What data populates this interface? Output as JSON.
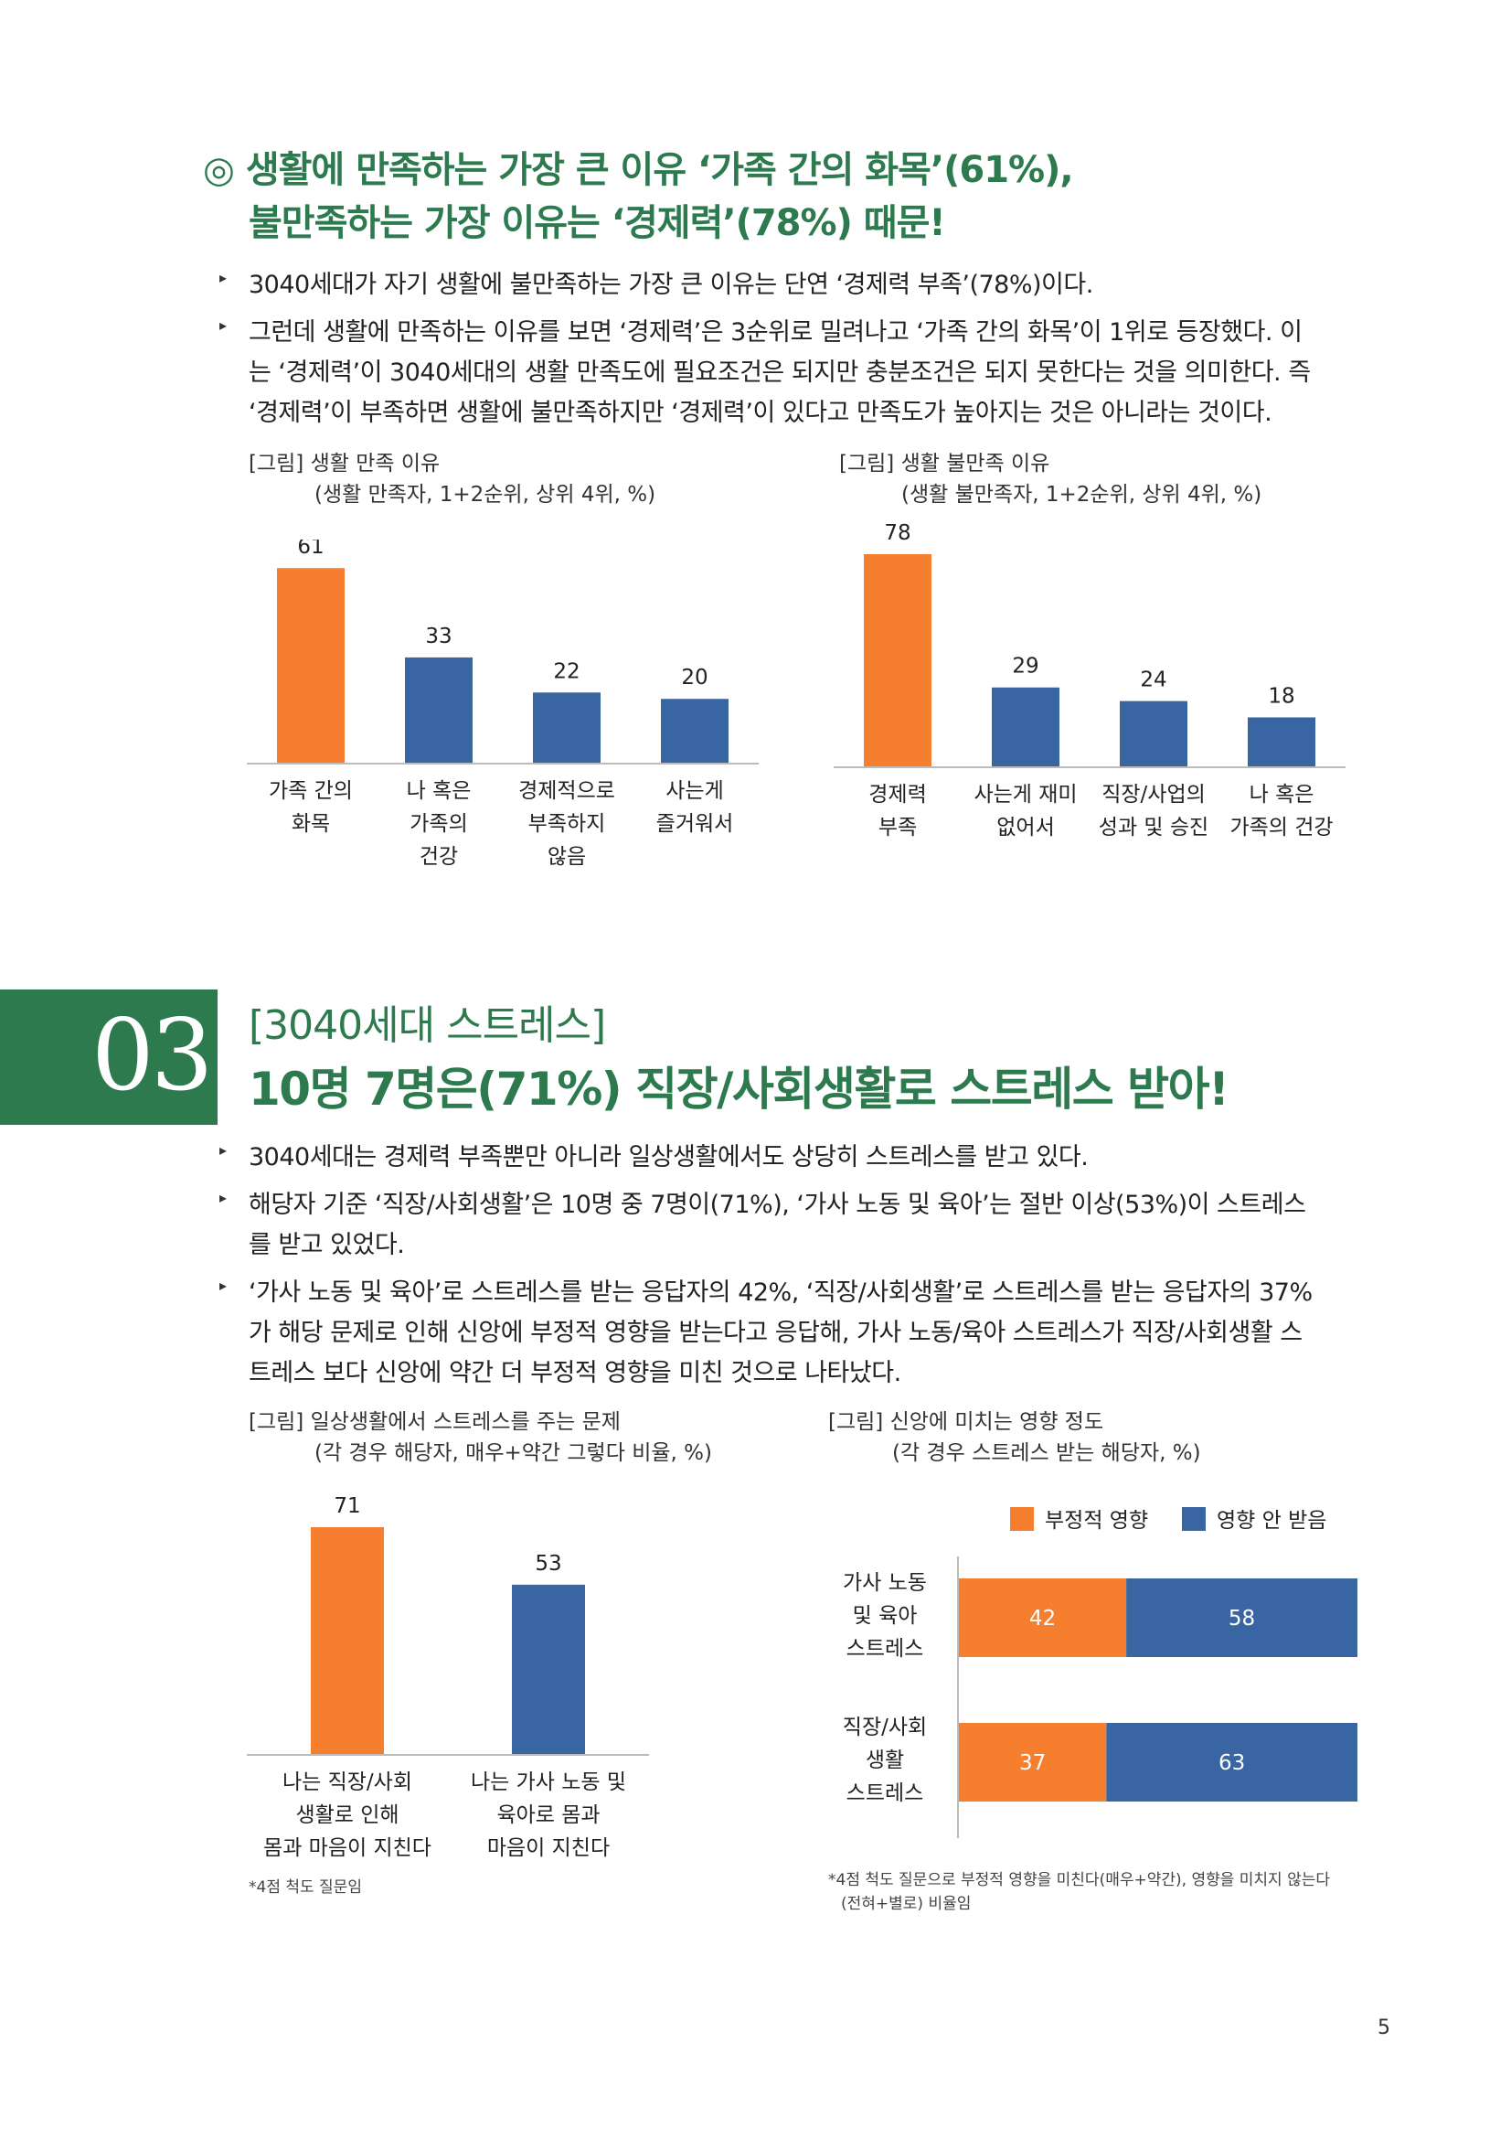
{
  "section1": {
    "heading_line1": "◎ 생활에 만족하는 가장 큰 이유 ‘가족 간의 화목’(61%),",
    "heading_line2": "불만족하는 가장 이유는 ‘경제력’(78%) 때문!",
    "bullets": [
      [
        "3040세대가 자기 생활에 불만족하는 가장 큰 이유는 단연 ‘경제력 부족’(78%)이다."
      ],
      [
        "그런데 생활에 만족하는 이유를 보면 ‘경제력’은 3순위로 밀려나고 ‘가족 간의 화목’이 1위로 등장했다. 이",
        "는 ‘경제력’이 3040세대의 생활 만족도에 필요조건은 되지만 충분조건은 되지 못한다는 것을 의미한다. 즉",
        "‘경제력’이 부족하면 생활에 불만족하지만 ‘경제력’이 있다고 만족도가 높아지는 것은 아니라는 것이다."
      ]
    ]
  },
  "fig1": {
    "title": "[그림] 생활 만족 이유",
    "subtitle": "(생활 만족자, 1+2순위, 상위 4위, %)"
  },
  "fig2": {
    "title": "[그림] 생활 불만족 이유",
    "subtitle": "(생활 불만족자, 1+2순위, 상위 4위, %)"
  },
  "section2": {
    "number": "03",
    "kicker": "[3040세대 스트레스]",
    "heading": "10명 7명은(71%) 직장/사회생활로 스트레스 받아!",
    "bullets": [
      [
        "3040세대는 경제력 부족뿐만 아니라 일상생활에서도 상당히 스트레스를 받고 있다."
      ],
      [
        "해당자 기준 ‘직장/사회생활’은 10명 중 7명이(71%), ‘가사 노동 및 육아’는 절반 이상(53%)이 스트레스",
        "를 받고 있었다."
      ],
      [
        "‘가사 노동 및 육아’로 스트레스를 받는 응답자의 42%, ‘직장/사회생활’로 스트레스를 받는 응답자의 37%",
        "가 해당 문제로 인해 신앙에 부정적 영향을 받는다고 응답해, 가사 노동/육아 스트레스가 직장/사회생활 스",
        "트레스 보다 신앙에 약간 더 부정적 영향을 미친 것으로 나타났다."
      ]
    ]
  },
  "fig3": {
    "title": "[그림] 일상생활에서 스트레스를 주는 문제",
    "subtitle": "(각 경우 해당자, 매우+약간 그렇다 비율, %)",
    "note": "*4점 척도 질문임"
  },
  "fig4": {
    "title": "[그림] 신앙에 미치는 영향 정도",
    "subtitle": "(각 경우 스트레스 받는 해당자, %)",
    "note_line1": "*4점 척도 질문으로 부정적 영향을 미친다(매우+약간), 영향을 미치지 않는다",
    "note_line2": "(전혀+별로) 비율임"
  },
  "page_number": "5",
  "colors": {
    "orange": "#f57f2f",
    "blue": "#3a65a3",
    "green": "#2e7a4f"
  },
  "chart_data": [
    {
      "type": "bar",
      "categories": [
        [
          "가족 간의",
          "화목"
        ],
        [
          "나 혹은",
          "가족의",
          "건강"
        ],
        [
          "경제적으로",
          "부족하지",
          "않음"
        ],
        [
          "사는게",
          "즐거워서"
        ]
      ],
      "values": [
        61,
        33,
        22,
        20
      ],
      "highlight_index": 0,
      "ylim": [
        0,
        70
      ]
    },
    {
      "type": "bar",
      "categories": [
        [
          "경제력",
          "부족"
        ],
        [
          "사는게 재미",
          "없어서"
        ],
        [
          "직장/사업의",
          "성과 및 승진"
        ],
        [
          "나 혹은",
          "가족의 건강"
        ]
      ],
      "values": [
        78,
        29,
        24,
        18
      ],
      "highlight_index": 0,
      "ylim": [
        0,
        85
      ]
    },
    {
      "type": "bar",
      "categories": [
        [
          "나는 직장/사회",
          "생활로 인해",
          "몸과 마음이 지친다"
        ],
        [
          "나는 가사 노동 및",
          "육아로 몸과",
          "마음이 지친다"
        ]
      ],
      "values": [
        71,
        53
      ],
      "highlight_index": 0,
      "ylim": [
        0,
        75
      ]
    },
    {
      "type": "bar",
      "orientation": "horizontal-stacked",
      "categories": [
        [
          "가사 노동",
          "및 육아",
          "스트레스"
        ],
        [
          "직장/사회",
          "생활",
          "스트레스"
        ]
      ],
      "series": [
        {
          "name": "부정적 영향",
          "values": [
            42,
            37
          ]
        },
        {
          "name": "영향 안 받음",
          "values": [
            58,
            63
          ]
        }
      ],
      "xlim": [
        0,
        100
      ]
    }
  ]
}
